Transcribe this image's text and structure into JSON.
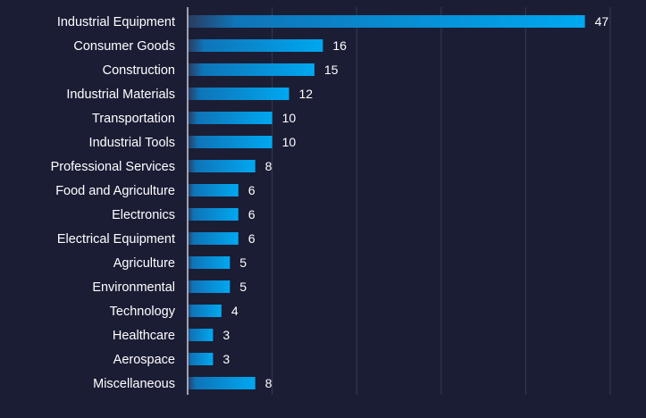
{
  "chart_data": {
    "type": "bar",
    "orientation": "horizontal",
    "categories": [
      "Industrial Equipment",
      "Consumer Goods",
      "Construction",
      "Industrial Materials",
      "Transportation",
      "Industrial Tools",
      "Professional Services",
      "Food and Agriculture",
      "Electronics",
      "Electrical Equipment",
      "Agriculture",
      "Environmental",
      "Technology",
      "Healthcare",
      "Aerospace",
      "Miscellaneous"
    ],
    "values": [
      47,
      16,
      15,
      12,
      10,
      10,
      8,
      6,
      6,
      6,
      5,
      5,
      4,
      3,
      3,
      8
    ],
    "xlim": [
      0,
      50
    ],
    "grid": true,
    "data_labels": true,
    "colors": {
      "background": "#1b1d35",
      "bar_start": "#2a3a5e",
      "bar_end": "#00a8f0",
      "grid": "#363a58",
      "axis": "#c9ccd8",
      "text": "#ffffff"
    }
  }
}
